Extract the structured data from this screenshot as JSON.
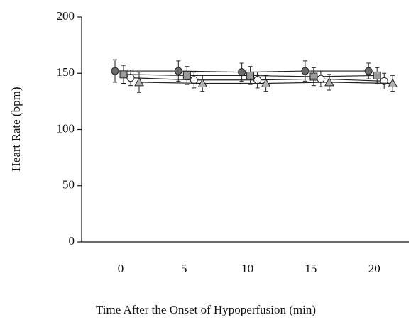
{
  "chart_data": {
    "type": "line",
    "x_label": "Time After the Onset of Hypoperfusion (min)",
    "y_label": "Heart Rate (bpm)",
    "categories": [
      "0",
      "5",
      "10",
      "15",
      "20"
    ],
    "ylim": [
      0,
      200
    ],
    "yticks": [
      0,
      50,
      100,
      150,
      200
    ],
    "series": [
      {
        "color": "#6a6a6a",
        "marker": "circle",
        "values": [
          152,
          152,
          151,
          152,
          152
        ],
        "error": [
          10,
          9,
          8,
          9,
          7
        ]
      },
      {
        "color": "#9a9a9a",
        "marker": "square",
        "values": [
          149,
          148,
          148,
          147,
          148
        ],
        "error": [
          8,
          8,
          8,
          8,
          7
        ]
      },
      {
        "color": "#ffffff",
        "marker": "circle",
        "values": [
          146,
          144,
          144,
          145,
          143
        ],
        "error": [
          7,
          7,
          7,
          7,
          7
        ]
      },
      {
        "color": "#b0b0b0",
        "marker": "triangle",
        "values": [
          142,
          141,
          141,
          142,
          141
        ],
        "error": [
          9,
          7,
          7,
          7,
          7
        ]
      }
    ]
  }
}
